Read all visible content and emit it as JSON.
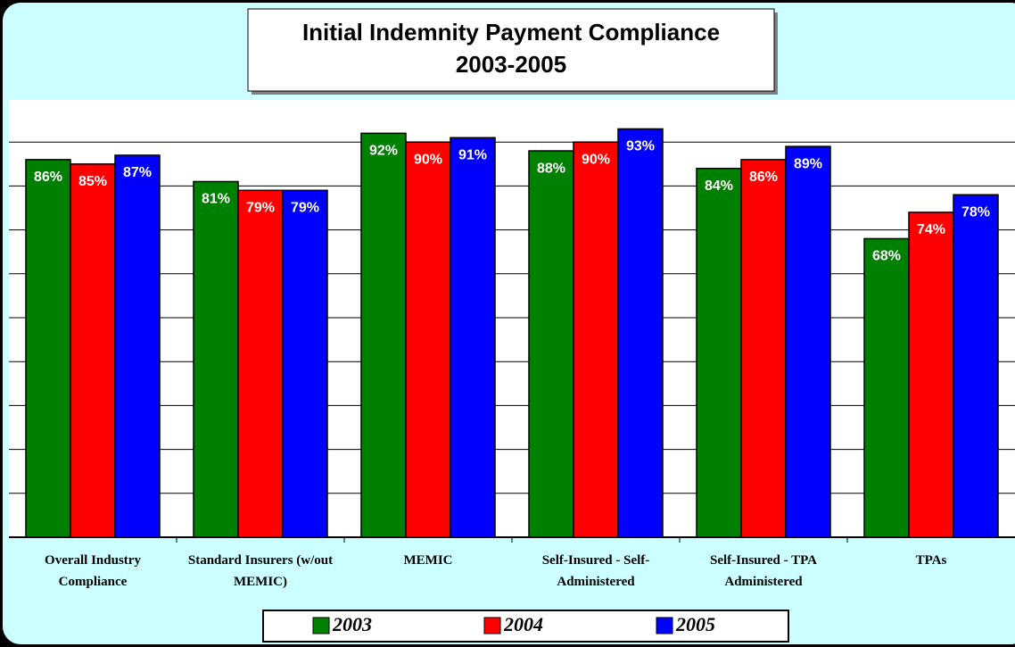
{
  "chart_data": {
    "type": "bar",
    "title": "Initial Indemnity Payment Compliance",
    "subtitle": "2003-2005",
    "categories": [
      "Overall Industry Compliance",
      "Standard Insurers (w/out MEMIC)",
      "MEMIC",
      "Self-Insured - Self-Administered",
      "Self-Insured - TPA Administered",
      "TPAs"
    ],
    "series": [
      {
        "name": "2003",
        "color": "#008000",
        "values": [
          86,
          81,
          92,
          88,
          84,
          68
        ],
        "value_labels": [
          "86%",
          "81%",
          "92%",
          "88%",
          "84%",
          "68%"
        ]
      },
      {
        "name": "2004",
        "color": "#ff0000",
        "values": [
          85,
          79,
          90,
          90,
          86,
          74
        ],
        "value_labels": [
          "85%",
          "79%",
          "90%",
          "90%",
          "86%",
          "74%"
        ]
      },
      {
        "name": "2005",
        "color": "#0000ff",
        "values": [
          87,
          79,
          91,
          93,
          89,
          78
        ],
        "value_labels": [
          "87%",
          "79%",
          "91%",
          "93%",
          "89%",
          "78%"
        ]
      }
    ],
    "ylim": [
      0,
      100
    ],
    "yticks": [
      0,
      10,
      20,
      30,
      40,
      50,
      60,
      70,
      80,
      90,
      100
    ],
    "grid": true,
    "legend": "bottom"
  }
}
